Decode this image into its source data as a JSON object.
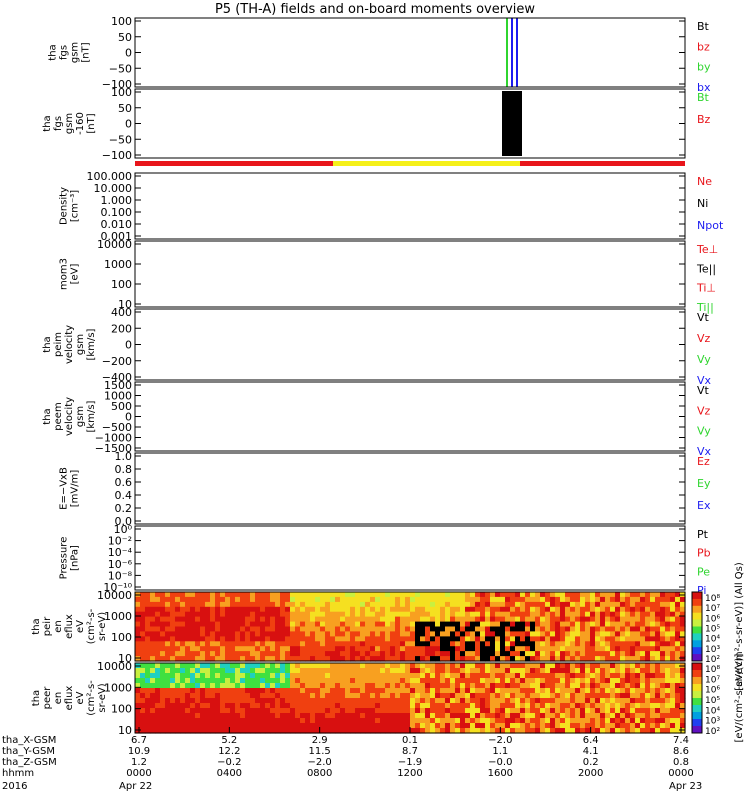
{
  "title": "P5 (TH-A) fields and on-board moments overview",
  "colors": {
    "black": "#000000",
    "red": "#e8151b",
    "green": "#2fd52f",
    "blue": "#1c1cf0",
    "yellow": "#f5f01a"
  },
  "chart_data": [
    {
      "type": "line",
      "ylabel": [
        "tha",
        "fgs",
        "gsm",
        "[nT]"
      ],
      "yticks": [
        "100",
        "50",
        "0",
        "−50",
        "−100"
      ],
      "legend": [
        {
          "name": "Bt",
          "color": "black"
        },
        {
          "name": "bz",
          "color": "red"
        },
        {
          "name": "by",
          "color": "green"
        },
        {
          "name": "bx",
          "color": "blue"
        }
      ]
    },
    {
      "type": "line",
      "ylabel": [
        "tha",
        "fgs",
        "gsm",
        "-160",
        "[nT]"
      ],
      "yticks": [
        "100",
        "50",
        "0",
        "−50",
        "−100"
      ],
      "legend": [
        {
          "name": "Bt",
          "color": "green"
        },
        {
          "name": "Bz",
          "color": "red"
        }
      ]
    },
    {
      "type": "line",
      "ylabel": [
        "Density",
        "[cm⁻³]"
      ],
      "yticks": [
        "100.000",
        "10.000",
        "1.000",
        "0.100",
        "0.010",
        "0.001"
      ],
      "legend": [
        {
          "name": "Ne",
          "color": "red"
        },
        {
          "name": "Ni",
          "color": "black"
        },
        {
          "name": "Npot",
          "color": "blue"
        }
      ]
    },
    {
      "type": "line",
      "ylabel": [
        "mom3",
        "[eV]"
      ],
      "yticks": [
        "10000",
        "1000",
        "100",
        "10"
      ],
      "legend": [
        {
          "name": "Te⊥",
          "color": "red"
        },
        {
          "name": "Te||",
          "color": "black"
        },
        {
          "name": "Ti⊥",
          "color": "red"
        },
        {
          "name": "Ti||",
          "color": "green"
        }
      ]
    },
    {
      "type": "line",
      "ylabel": [
        "tha",
        "peim",
        "velocity",
        "gsm",
        "[km/s]"
      ],
      "yticks": [
        "400",
        "200",
        "0",
        "−200",
        "−400"
      ],
      "legend": [
        {
          "name": "Vt",
          "color": "black"
        },
        {
          "name": "Vz",
          "color": "red"
        },
        {
          "name": "Vy",
          "color": "green"
        },
        {
          "name": "Vx",
          "color": "blue"
        }
      ]
    },
    {
      "type": "line",
      "ylabel": [
        "tha",
        "peem",
        "velocity",
        "gsm",
        "[km/s]"
      ],
      "yticks": [
        "1500",
        "1000",
        "500",
        "0",
        "−500",
        "−1000",
        "−1500"
      ],
      "legend": [
        {
          "name": "Vt",
          "color": "black"
        },
        {
          "name": "Vz",
          "color": "red"
        },
        {
          "name": "Vy",
          "color": "green"
        },
        {
          "name": "Vx",
          "color": "blue"
        }
      ]
    },
    {
      "type": "line",
      "ylabel": [
        "E=−VxB",
        "[mV/m]"
      ],
      "yticks": [
        "1.0",
        "0.8",
        "0.6",
        "0.4",
        "0.2",
        "0.0"
      ],
      "legend": [
        {
          "name": "Ez",
          "color": "red"
        },
        {
          "name": "Ey",
          "color": "green"
        },
        {
          "name": "Ex",
          "color": "blue"
        }
      ]
    },
    {
      "type": "line",
      "ylabel": [
        "Pressure",
        "[nPa]"
      ],
      "yticks": [
        "10⁰",
        "10⁻²",
        "10⁻⁴",
        "10⁻⁶",
        "10⁻⁸",
        "10⁻¹⁰"
      ],
      "legend": [
        {
          "name": "Pt",
          "color": "black"
        },
        {
          "name": "Pb",
          "color": "red"
        },
        {
          "name": "Pe",
          "color": "green"
        },
        {
          "name": "Pi",
          "color": "blue"
        }
      ]
    },
    {
      "type": "heatmap",
      "ylabel": [
        "tha",
        "peir",
        "en",
        "eflux",
        "eV",
        "(cm²-s-",
        "sr-eV)"
      ],
      "yticks": [
        "10000",
        "1000",
        "100",
        "10"
      ],
      "colorbar_ticks": [
        "10⁸",
        "10⁷",
        "10⁶",
        "10⁵",
        "10⁴",
        "10³",
        "10²"
      ],
      "colorbar_label": "[eV/(cm²-s-sr-eV)] (All Qs)"
    },
    {
      "type": "heatmap",
      "ylabel": [
        "tha",
        "peer",
        "en",
        "eflux",
        "eV",
        "(cm²-s-",
        "sr-eV)"
      ],
      "yticks": [
        "10000",
        "1000",
        "100",
        "10"
      ],
      "colorbar_ticks": [
        "10⁸",
        "10⁷",
        "10⁶",
        "10⁵",
        "10⁴",
        "10³",
        "10²"
      ],
      "colorbar_label": "[eV/(cm²-s-sr-eV)]"
    }
  ],
  "xaxis": {
    "rows": [
      {
        "label": "tha_X-GSM",
        "values": [
          "6.7",
          "5.2",
          "2.9",
          "0.1",
          "−2.0",
          "6.4",
          "7.4"
        ]
      },
      {
        "label": "tha_Y-GSM",
        "values": [
          "10.9",
          "12.2",
          "11.5",
          "8.7",
          "1.1",
          "4.1",
          "8.6"
        ]
      },
      {
        "label": "tha_Z-GSM",
        "values": [
          "1.2",
          "−0.2",
          "−2.0",
          "−1.9",
          "−0.0",
          "0.2",
          "0.8"
        ]
      },
      {
        "label": "hhmm",
        "values": [
          "0000",
          "0400",
          "0800",
          "1200",
          "1600",
          "2000",
          "0000"
        ]
      }
    ],
    "year": "2016",
    "date_start": "Apr 22",
    "date_end": "Apr 23"
  }
}
